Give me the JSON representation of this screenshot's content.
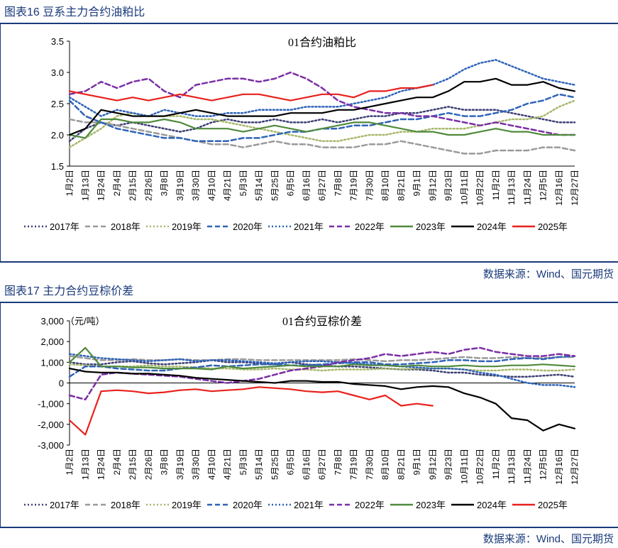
{
  "panels": [
    {
      "title": "图表16  豆系主力合约油粕比",
      "source": "数据来源：Wind、国元期货"
    },
    {
      "title": "图表17  主力合约豆棕价差",
      "source": "数据来源：Wind、国元期货"
    }
  ],
  "chart_data": [
    {
      "type": "line",
      "title": "01合约油粕比",
      "ylabel": "",
      "unit_label": "",
      "ylim": [
        1.5,
        3.5
      ],
      "yticks": [
        1.5,
        2.0,
        2.5,
        3.0,
        3.5
      ],
      "ytick_labels": [
        "1.5",
        "2.0",
        "2.5",
        "3.0",
        "3.5"
      ],
      "categories": [
        "1月2日",
        "1月13日",
        "1月24日",
        "2月4日",
        "2月15日",
        "2月26日",
        "3月8日",
        "3月19日",
        "3月30日",
        "4月10日",
        "4月21日",
        "5月3日",
        "5月14日",
        "5月25日",
        "6月5日",
        "6月16日",
        "6月27日",
        "7月8日",
        "7月19日",
        "7月30日",
        "8月10日",
        "8月21日",
        "9月1日",
        "9月12日",
        "9月23日",
        "10月11日",
        "10月22日",
        "11月2日",
        "11月13日",
        "11月24日",
        "12月5日",
        "12月16日",
        "12月27日"
      ],
      "series": [
        {
          "name": "2017年",
          "color": "#3b3f73",
          "dash": "dot",
          "values": [
            1.9,
            2.1,
            2.2,
            2.15,
            2.2,
            2.15,
            2.1,
            2.05,
            2.1,
            2.2,
            2.25,
            2.2,
            2.2,
            2.25,
            2.2,
            2.2,
            2.25,
            2.2,
            2.25,
            2.3,
            2.3,
            2.35,
            2.35,
            2.4,
            2.45,
            2.4,
            2.4,
            2.4,
            2.35,
            2.3,
            2.25,
            2.2,
            2.2
          ]
        },
        {
          "name": "2018年",
          "color": "#9a9a9a",
          "dash": "dash",
          "values": [
            2.25,
            2.2,
            2.2,
            2.15,
            2.1,
            2.05,
            2.0,
            1.95,
            1.9,
            1.85,
            1.85,
            1.8,
            1.85,
            1.9,
            1.85,
            1.85,
            1.8,
            1.8,
            1.8,
            1.85,
            1.85,
            1.9,
            1.85,
            1.8,
            1.75,
            1.7,
            1.7,
            1.75,
            1.75,
            1.75,
            1.8,
            1.8,
            1.75
          ]
        },
        {
          "name": "2019年",
          "color": "#a7b86b",
          "dash": "dot",
          "values": [
            1.8,
            1.95,
            2.1,
            2.3,
            2.35,
            2.3,
            2.3,
            2.3,
            2.25,
            2.25,
            2.2,
            2.15,
            2.1,
            2.05,
            2.0,
            1.95,
            1.9,
            1.9,
            1.95,
            2.0,
            2.0,
            2.05,
            2.05,
            2.1,
            2.1,
            2.1,
            2.15,
            2.2,
            2.25,
            2.25,
            2.3,
            2.45,
            2.55
          ]
        },
        {
          "name": "2020年",
          "color": "#2e63b8",
          "dash": "dash",
          "values": [
            2.55,
            2.3,
            2.2,
            2.1,
            2.05,
            2.0,
            1.95,
            1.95,
            1.9,
            1.9,
            1.9,
            1.95,
            1.95,
            2.0,
            2.05,
            2.05,
            2.1,
            2.1,
            2.15,
            2.15,
            2.2,
            2.25,
            2.25,
            2.3,
            2.35,
            2.3,
            2.3,
            2.35,
            2.4,
            2.5,
            2.55,
            2.65,
            2.6
          ]
        },
        {
          "name": "2021年",
          "color": "#2e63b8",
          "dash": "dot",
          "values": [
            2.6,
            2.45,
            2.3,
            2.4,
            2.35,
            2.3,
            2.4,
            2.35,
            2.3,
            2.3,
            2.35,
            2.35,
            2.4,
            2.4,
            2.4,
            2.45,
            2.45,
            2.45,
            2.5,
            2.55,
            2.6,
            2.7,
            2.75,
            2.8,
            2.9,
            3.05,
            3.15,
            3.2,
            3.1,
            3.0,
            2.9,
            2.85,
            2.8
          ]
        },
        {
          "name": "2022年",
          "color": "#7b2fa6",
          "dash": "dash",
          "values": [
            2.65,
            2.7,
            2.85,
            2.75,
            2.85,
            2.9,
            2.7,
            2.6,
            2.8,
            2.85,
            2.9,
            2.9,
            2.85,
            2.9,
            3.0,
            2.9,
            2.75,
            2.55,
            2.45,
            2.4,
            2.35,
            2.35,
            2.3,
            2.3,
            2.25,
            2.2,
            2.15,
            2.2,
            2.15,
            2.1,
            2.05,
            2.0,
            2.0
          ]
        },
        {
          "name": "2023年",
          "color": "#4f8a3c",
          "dash": "solid",
          "values": [
            2.0,
            1.95,
            2.25,
            2.25,
            2.2,
            2.2,
            2.25,
            2.2,
            2.1,
            2.1,
            2.1,
            2.05,
            2.1,
            2.15,
            2.1,
            2.05,
            2.1,
            2.15,
            2.2,
            2.2,
            2.15,
            2.1,
            2.05,
            2.05,
            2.0,
            2.0,
            2.05,
            2.1,
            2.05,
            2.05,
            2.0,
            2.0,
            2.0
          ]
        },
        {
          "name": "2024年",
          "color": "#000000",
          "dash": "solid",
          "values": [
            2.0,
            2.1,
            2.4,
            2.35,
            2.3,
            2.3,
            2.3,
            2.35,
            2.4,
            2.35,
            2.3,
            2.3,
            2.3,
            2.3,
            2.35,
            2.35,
            2.35,
            2.4,
            2.4,
            2.45,
            2.5,
            2.55,
            2.6,
            2.6,
            2.7,
            2.85,
            2.85,
            2.9,
            2.8,
            2.8,
            2.85,
            2.75,
            2.7
          ]
        },
        {
          "name": "2025年",
          "color": "#e8211c",
          "dash": "solid",
          "values": [
            2.7,
            2.65,
            2.6,
            2.55,
            2.6,
            2.55,
            2.6,
            2.65,
            2.6,
            2.55,
            2.6,
            2.65,
            2.65,
            2.6,
            2.55,
            2.6,
            2.65,
            2.65,
            2.6,
            2.7,
            2.7,
            2.75,
            2.75,
            2.8,
            null,
            null,
            null,
            null,
            null,
            null,
            null,
            null,
            null
          ]
        }
      ]
    },
    {
      "type": "line",
      "title": "01合约豆棕价差",
      "unit_label": "（元/吨）",
      "ylim": [
        -3000,
        3000
      ],
      "yticks": [
        -3000,
        -2000,
        -1000,
        0,
        1000,
        2000,
        3000
      ],
      "ytick_labels": [
        "-3,000",
        "-2,000",
        "-1,000",
        "0",
        "1,000",
        "2,000",
        "3,000"
      ],
      "categories": [
        "1月2日",
        "1月13日",
        "1月24日",
        "2月4日",
        "2月15日",
        "2月26日",
        "3月8日",
        "3月19日",
        "3月30日",
        "4月10日",
        "4月21日",
        "5月3日",
        "5月14日",
        "5月25日",
        "6月5日",
        "6月16日",
        "6月27日",
        "7月8日",
        "7月19日",
        "7月30日",
        "8月10日",
        "8月21日",
        "9月1日",
        "9月12日",
        "9月23日",
        "10月11日",
        "10月22日",
        "11月2日",
        "11月13日",
        "11月24日",
        "12月5日",
        "12月16日",
        "12月27日"
      ],
      "series": [
        {
          "name": "2017年",
          "color": "#3b3f73",
          "dash": "dot",
          "values": [
            1000,
            900,
            900,
            1000,
            1050,
            950,
            900,
            950,
            1000,
            1100,
            1000,
            1000,
            950,
            900,
            1000,
            900,
            850,
            800,
            800,
            750,
            700,
            650,
            650,
            600,
            500,
            500,
            400,
            350,
            300,
            300,
            350,
            400,
            300
          ]
        },
        {
          "name": "2018年",
          "color": "#9a9a9a",
          "dash": "dash",
          "values": [
            1300,
            1200,
            1100,
            1100,
            1150,
            1100,
            1100,
            1150,
            1100,
            1100,
            1150,
            1150,
            1100,
            1100,
            1100,
            1100,
            1100,
            1100,
            1150,
            1100,
            1050,
            1100,
            1100,
            1150,
            1200,
            1250,
            1200,
            1200,
            1250,
            1200,
            1200,
            1250,
            1250
          ]
        },
        {
          "name": "2019年",
          "color": "#a7b86b",
          "dash": "dot",
          "values": [
            900,
            850,
            800,
            800,
            800,
            850,
            800,
            800,
            750,
            700,
            700,
            650,
            650,
            700,
            650,
            650,
            600,
            650,
            650,
            650,
            700,
            650,
            700,
            700,
            700,
            650,
            600,
            600,
            650,
            650,
            600,
            600,
            650
          ]
        },
        {
          "name": "2020年",
          "color": "#2e63b8",
          "dash": "dash",
          "values": [
            300,
            800,
            800,
            700,
            650,
            600,
            600,
            700,
            750,
            850,
            800,
            850,
            900,
            900,
            850,
            850,
            900,
            950,
            1000,
            1000,
            900,
            900,
            950,
            1000,
            1100,
            1100,
            1050,
            1050,
            1150,
            1200,
            1150,
            1250,
            1300
          ]
        },
        {
          "name": "2021年",
          "color": "#2e63b8",
          "dash": "dot",
          "values": [
            1400,
            1300,
            1200,
            1150,
            1100,
            1050,
            1100,
            1150,
            1050,
            1100,
            1100,
            1050,
            1000,
            950,
            1000,
            1050,
            1050,
            1000,
            950,
            900,
            850,
            800,
            750,
            700,
            700,
            650,
            500,
            400,
            200,
            0,
            -100,
            -100,
            -200
          ]
        },
        {
          "name": "2022年",
          "color": "#7b2fa6",
          "dash": "dash",
          "values": [
            -600,
            -800,
            400,
            500,
            450,
            400,
            350,
            300,
            200,
            100,
            0,
            100,
            200,
            400,
            600,
            700,
            800,
            1000,
            1100,
            1200,
            1400,
            1300,
            1400,
            1500,
            1400,
            1600,
            1700,
            1500,
            1400,
            1300,
            1300,
            1400,
            1300
          ]
        },
        {
          "name": "2023年",
          "color": "#4f8a3c",
          "dash": "solid",
          "values": [
            1000,
            1700,
            800,
            800,
            750,
            750,
            700,
            700,
            700,
            650,
            800,
            700,
            750,
            800,
            850,
            800,
            800,
            800,
            900,
            850,
            850,
            800,
            850,
            800,
            800,
            850,
            800,
            800,
            850,
            850,
            900,
            850,
            800
          ]
        },
        {
          "name": "2024年",
          "color": "#000000",
          "dash": "solid",
          "values": [
            700,
            550,
            500,
            500,
            450,
            450,
            400,
            350,
            250,
            200,
            150,
            100,
            50,
            0,
            100,
            100,
            50,
            50,
            -50,
            -100,
            -150,
            -300,
            -200,
            -150,
            -200,
            -500,
            -700,
            -1000,
            -1700,
            -1800,
            -2300,
            -2000,
            -2200
          ]
        },
        {
          "name": "2025年",
          "color": "#e8211c",
          "dash": "solid",
          "values": [
            -1800,
            -2500,
            -400,
            -350,
            -400,
            -500,
            -450,
            -350,
            -300,
            -400,
            -350,
            -300,
            -200,
            -250,
            -300,
            -400,
            -450,
            -400,
            -600,
            -800,
            -600,
            -1100,
            -1000,
            -1100,
            null,
            null,
            null,
            null,
            null,
            null,
            null,
            null,
            null
          ]
        }
      ]
    }
  ]
}
